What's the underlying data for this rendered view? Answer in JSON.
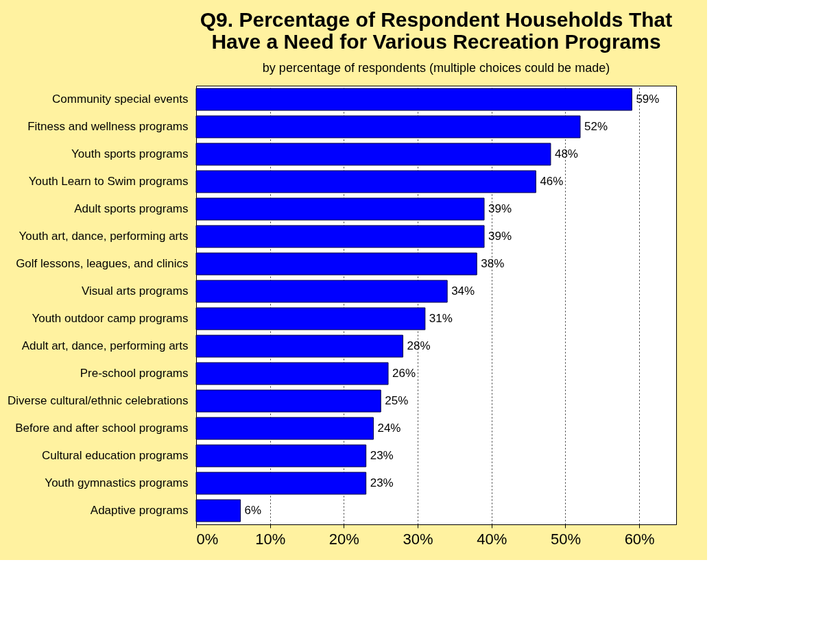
{
  "chart_data": {
    "type": "bar",
    "orientation": "horizontal",
    "title": [
      "Q9. Percentage of Respondent Households That",
      "Have a Need for Various Recreation Programs"
    ],
    "subtitle": "by percentage of respondents (multiple choices could be made)",
    "categories": [
      "Community special events",
      "Fitness and wellness programs",
      "Youth sports programs",
      "Youth Learn to Swim programs",
      "Adult sports programs",
      "Youth art, dance, performing arts",
      "Golf lessons, leagues, and clinics",
      "Visual arts programs",
      "Youth outdoor camp programs",
      "Adult art, dance, performing arts",
      "Pre-school programs",
      "Diverse cultural/ethnic celebrations",
      "Before and after school programs",
      "Cultural education programs",
      "Youth gymnastics programs",
      "Adaptive programs"
    ],
    "values": [
      59,
      52,
      48,
      46,
      39,
      39,
      38,
      34,
      31,
      28,
      26,
      25,
      24,
      23,
      23,
      6
    ],
    "color": "#0000ff",
    "xlim": [
      0,
      65
    ],
    "xticks": [
      {
        "value": 0,
        "label": "0%"
      },
      {
        "value": 10,
        "label": "10%"
      },
      {
        "value": 20,
        "label": "20%"
      },
      {
        "value": 30,
        "label": "30%"
      },
      {
        "value": 40,
        "label": "40%"
      },
      {
        "value": 50,
        "label": "50%"
      },
      {
        "value": 60,
        "label": "60%"
      }
    ],
    "value_labels": [
      "59%",
      "52%",
      "48%",
      "46%",
      "39%",
      "39%",
      "38%",
      "34%",
      "31%",
      "28%",
      "26%",
      "25%",
      "24%",
      "23%",
      "23%",
      "6%"
    ],
    "grid": "x"
  }
}
